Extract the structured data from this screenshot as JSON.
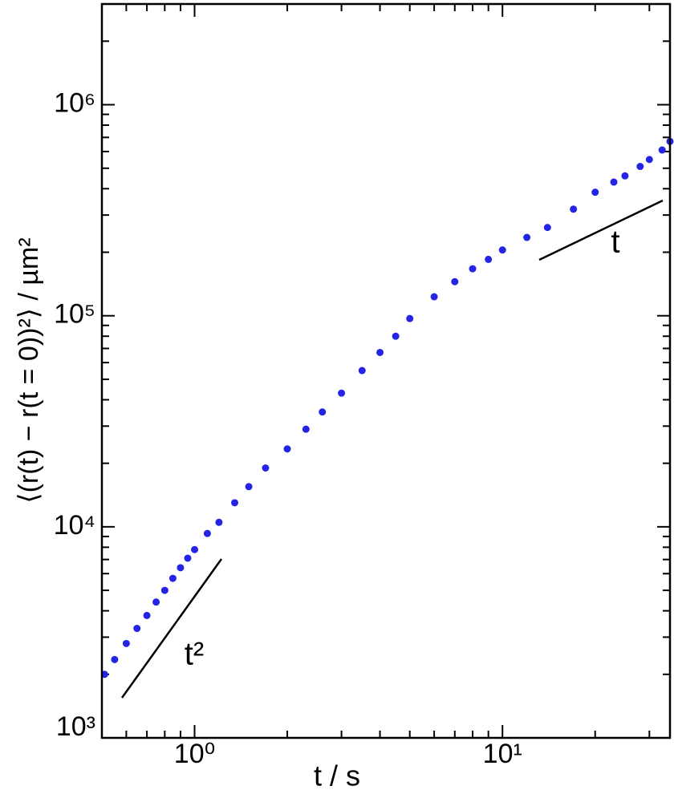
{
  "chart_data": {
    "type": "scatter",
    "xlabel": "t / s",
    "ylabel": "⟨(r(t) − r(t = 0))²⟩ / µm²",
    "xscale": "log",
    "yscale": "log",
    "xlim": [
      0.5,
      35
    ],
    "ylim": [
      1000,
      3000000
    ],
    "xticks": [
      {
        "value": 1,
        "label": "10⁰"
      },
      {
        "value": 10,
        "label": "10¹"
      }
    ],
    "yticks": [
      {
        "value": 1000,
        "label": "10³"
      },
      {
        "value": 10000,
        "label": "10⁴"
      },
      {
        "value": 100000,
        "label": "10⁵"
      },
      {
        "value": 1000000,
        "label": "10⁶"
      }
    ],
    "annotations": [
      {
        "text": "t²"
      },
      {
        "text": "t"
      }
    ],
    "series": [
      {
        "color": "#2424e6",
        "x": [
          0.51,
          0.55,
          0.6,
          0.65,
          0.7,
          0.75,
          0.8,
          0.85,
          0.9,
          0.95,
          1.0,
          1.1,
          1.2,
          1.35,
          1.5,
          1.7,
          2.0,
          2.3,
          2.6,
          3.0,
          3.5,
          4.0,
          4.5,
          5.0,
          6.0,
          7.0,
          8.0,
          9.0,
          10,
          12,
          14,
          17,
          20,
          23,
          25,
          28,
          30,
          33,
          35
        ],
        "values": [
          2000,
          2350,
          2800,
          3300,
          3800,
          4400,
          5000,
          5700,
          6400,
          7100,
          7800,
          9300,
          10500,
          13000,
          15500,
          19000,
          23400,
          29000,
          35000,
          43000,
          55000,
          67000,
          80000,
          97000,
          123000,
          145000,
          167000,
          185000,
          205000,
          235000,
          262000,
          320000,
          385000,
          430000,
          460000,
          510000,
          550000,
          610000,
          670000
        ]
      }
    ]
  }
}
